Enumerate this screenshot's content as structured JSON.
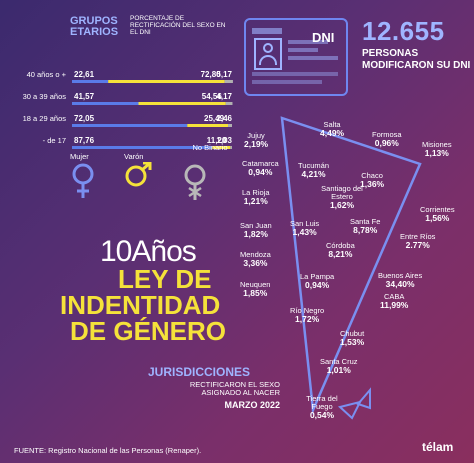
{
  "header": {
    "grupos_title": "GRUPOS ETARIOS",
    "grupos_subtitle": "PORCENTAJE DE RECTIFICACIÓN DEL SEXO EN EL DNI",
    "dni_card_label": "DNI",
    "big_number": "12.655",
    "big_caption": "PERSONAS MODIFICARON SU DNI"
  },
  "chart_data": [
    {
      "type": "bar",
      "orientation": "horizontal-stacked",
      "title": "GRUPOS ETARIOS",
      "subtitle": "PORCENTAJE DE RECTIFICACIÓN DEL SEXO EN EL DNI",
      "categories": [
        "40 años o +",
        "30 a 39 años",
        "18 a 29 años",
        "- de 17"
      ],
      "series": [
        {
          "name": "Mujer",
          "color": "#5a7be8",
          "values": [
            22.61,
            41.57,
            72.05,
            87.76
          ]
        },
        {
          "name": "Varón",
          "color": "#f5e23a",
          "values": [
            72.8,
            54.56,
            25.49,
            11.2
          ]
        },
        {
          "name": "No Binario",
          "color": "#b0b0b0",
          "values": [
            5.17,
            4.17,
            2.46,
            1.03
          ]
        }
      ],
      "labels": [
        [
          "22,61",
          "72,80",
          "5,17"
        ],
        [
          "41,57",
          "54,56",
          "4,17"
        ],
        [
          "72,05",
          "25,49",
          "2,46"
        ],
        [
          "87,76",
          "11,20",
          "1,03"
        ]
      ],
      "legend": {
        "placement": "bottom",
        "items": [
          "Mujer",
          "Varón",
          "No Binario"
        ]
      }
    },
    {
      "type": "table",
      "title": "JURISDICCIONES",
      "subtitle": "RECTIFICARON EL SEXO ASIGNADO AL NACER",
      "date": "MARZO 2022",
      "rows": [
        {
          "name": "Salta",
          "label": "4,49%",
          "value": 4.49
        },
        {
          "name": "Jujuy",
          "label": "2,19%",
          "value": 2.19
        },
        {
          "name": "Formosa",
          "label": "0,96%",
          "value": 0.96
        },
        {
          "name": "Misiones",
          "label": "1,13%",
          "value": 1.13
        },
        {
          "name": "Catamarca",
          "label": "0,94%",
          "value": 0.94
        },
        {
          "name": "Tucumán",
          "label": "4,21%",
          "value": 4.21
        },
        {
          "name": "Chaco",
          "label": "1,36%",
          "value": 1.36
        },
        {
          "name": "Santiago del Estero",
          "label": "1,62%",
          "value": 1.62
        },
        {
          "name": "La Rioja",
          "label": "1,21%",
          "value": 1.21
        },
        {
          "name": "Corrientes",
          "label": "1,56%",
          "value": 1.56
        },
        {
          "name": "San Juan",
          "label": "1,82%",
          "value": 1.82
        },
        {
          "name": "San Luis",
          "label": "1,43%",
          "value": 1.43
        },
        {
          "name": "Santa Fe",
          "label": "8,78%",
          "value": 8.78
        },
        {
          "name": "Entre Ríos",
          "label": "2.77%",
          "value": 2.77
        },
        {
          "name": "Córdoba",
          "label": "8,21%",
          "value": 8.21
        },
        {
          "name": "Mendoza",
          "label": "3,36%",
          "value": 3.36
        },
        {
          "name": "Buenos Aires",
          "label": "34,40%",
          "value": 34.4
        },
        {
          "name": "La Pampa",
          "label": "0,94%",
          "value": 0.94
        },
        {
          "name": "Neuquen",
          "label": "1,85%",
          "value": 1.85
        },
        {
          "name": "CABA",
          "label": "11,99%",
          "value": 11.99
        },
        {
          "name": "Río Negro",
          "label": "1,72%",
          "value": 1.72
        },
        {
          "name": "Chubut",
          "label": "1,53%",
          "value": 1.53
        },
        {
          "name": "Santa Cruz",
          "label": "1,01%",
          "value": 1.01
        },
        {
          "name": "Tierra del Fuego",
          "label": "0,54%",
          "value": 0.54
        }
      ]
    }
  ],
  "hero": {
    "line1": "10Años",
    "line2": "LEY DE",
    "line3": "INDENTIDAD",
    "line4": "DE GÉNERO"
  },
  "jurisdicciones": {
    "title": "JURISDICCIONES",
    "subtitle_1": "RECTIFICARON EL SEXO",
    "subtitle_2": "ASIGNADO AL NACER",
    "date": "MARZO 2022"
  },
  "footer": {
    "source": "FUENTE: Registro Nacional de las Personas (Renaper).",
    "logo": "télam"
  },
  "colors": {
    "mujer": "#5a7be8",
    "varon": "#f5e23a",
    "nobinario": "#b0b0b0",
    "accent_blue": "#6f86f0"
  }
}
